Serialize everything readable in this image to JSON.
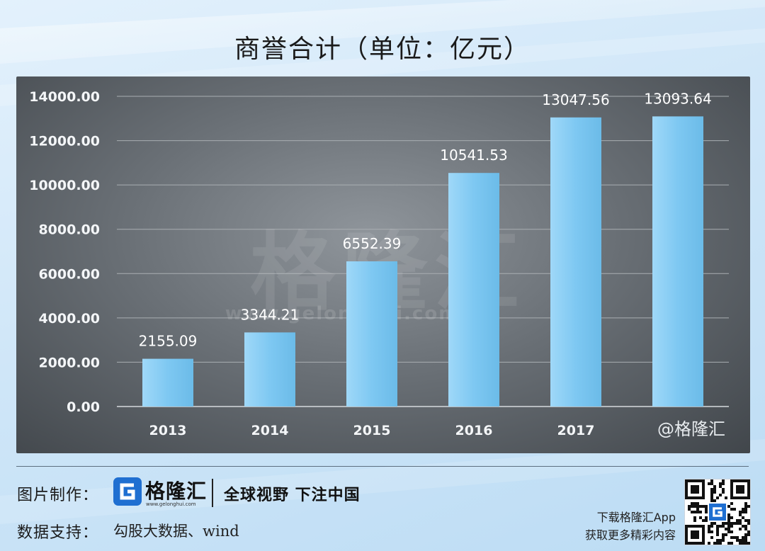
{
  "title": "商誉合计（单位：亿元）",
  "chart_data": {
    "type": "bar",
    "title": "商誉合计（单位：亿元）",
    "categories": [
      "2013",
      "2014",
      "2015",
      "2016",
      "2017",
      ""
    ],
    "values": [
      2155.09,
      3344.21,
      6552.39,
      10541.53,
      13047.56,
      13093.64
    ],
    "value_labels": [
      "2155.09",
      "3344.21",
      "6552.39",
      "10541.53",
      "13047.56",
      "13093.64"
    ],
    "y_ticks": [
      "0.00",
      "2000.00",
      "4000.00",
      "6000.00",
      "8000.00",
      "10000.00",
      "12000.00",
      "14000.00"
    ],
    "ylim": [
      0,
      14000
    ],
    "grid": true,
    "bar_color": "#7ec8f2"
  },
  "watermark": {
    "big": "格隆汇",
    "url": "www.gelonghui.com",
    "corner": "@格隆汇"
  },
  "footer": {
    "made_by_label": "图片制作：",
    "logo_text": "格隆汇",
    "logo_url": "www.gelonghui.com",
    "slogan": "全球视野 下注中国",
    "data_label": "数据支持：",
    "data_source": "勾股大数据、wind",
    "app_line1": "下载格隆汇App",
    "app_line2": "获取更多精彩内容"
  },
  "colors": {
    "background": "#cfe6f8",
    "panel": "#6a7076",
    "bar": "#7ec8f2",
    "logo_blue": "#1f6fd1"
  },
  "icons": {
    "logo": "gelonghui-g-logo-icon",
    "qr": "qr-code-icon"
  }
}
